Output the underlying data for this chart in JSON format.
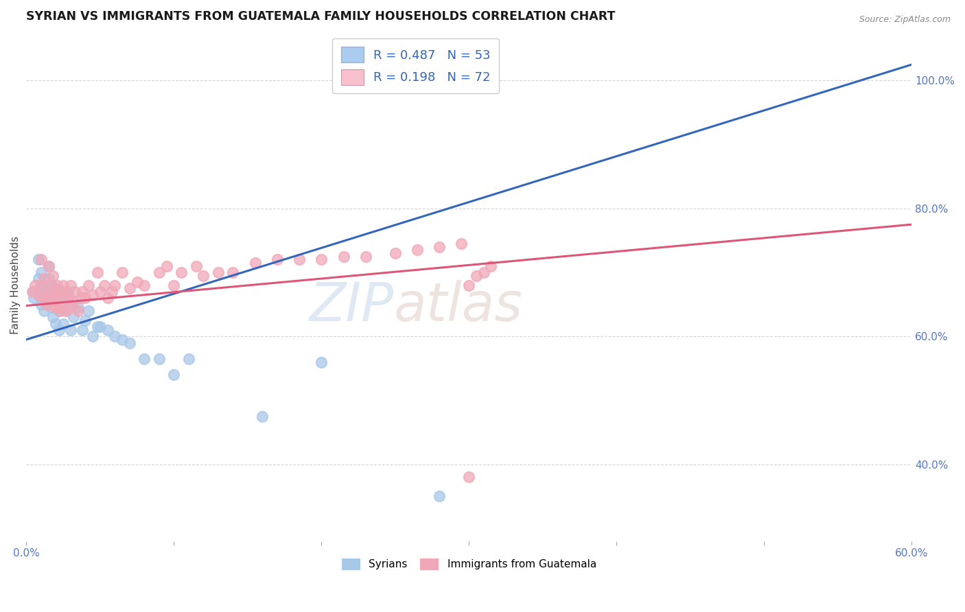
{
  "title": "SYRIAN VS IMMIGRANTS FROM GUATEMALA FAMILY HOUSEHOLDS CORRELATION CHART",
  "source": "Source: ZipAtlas.com",
  "ylabel": "Family Households",
  "watermark_zip": "ZIP",
  "watermark_atlas": "atlas",
  "syrians_color": "#a8c8e8",
  "guatemala_color": "#f0a8b8",
  "trendline_blue": "#3366bb",
  "trendline_pink": "#dd5577",
  "background_color": "#ffffff",
  "grid_color": "#cccccc",
  "xlim": [
    0.0,
    0.6
  ],
  "ylim": [
    0.28,
    1.08
  ],
  "xticks": [
    0.0,
    0.1,
    0.2,
    0.3,
    0.4,
    0.5,
    0.6
  ],
  "xticklabels": [
    "0.0%",
    "",
    "",
    "",
    "",
    "",
    "60.0%"
  ],
  "yticks_right": [
    0.4,
    0.6,
    0.8,
    1.0
  ],
  "ytick_right_labels": [
    "40.0%",
    "60.0%",
    "80.0%",
    "100.0%"
  ],
  "blue_trend_x0": 0.0,
  "blue_trend_y0": 0.595,
  "blue_trend_x1": 0.6,
  "blue_trend_y1": 1.025,
  "pink_trend_x0": 0.0,
  "pink_trend_y0": 0.648,
  "pink_trend_x1": 0.6,
  "pink_trend_y1": 0.775,
  "syrians_x": [
    0.005,
    0.005,
    0.008,
    0.008,
    0.01,
    0.01,
    0.01,
    0.01,
    0.012,
    0.012,
    0.013,
    0.013,
    0.015,
    0.015,
    0.015,
    0.015,
    0.017,
    0.017,
    0.017,
    0.018,
    0.018,
    0.02,
    0.02,
    0.02,
    0.022,
    0.022,
    0.023,
    0.023,
    0.025,
    0.025,
    0.027,
    0.028,
    0.03,
    0.03,
    0.032,
    0.035,
    0.038,
    0.04,
    0.042,
    0.045,
    0.048,
    0.05,
    0.055,
    0.06,
    0.065,
    0.07,
    0.08,
    0.09,
    0.1,
    0.11,
    0.16,
    0.2,
    0.28
  ],
  "syrians_y": [
    0.67,
    0.66,
    0.69,
    0.72,
    0.65,
    0.66,
    0.68,
    0.7,
    0.64,
    0.67,
    0.66,
    0.68,
    0.65,
    0.67,
    0.69,
    0.71,
    0.645,
    0.66,
    0.68,
    0.63,
    0.66,
    0.62,
    0.65,
    0.675,
    0.61,
    0.64,
    0.65,
    0.67,
    0.62,
    0.66,
    0.64,
    0.67,
    0.61,
    0.65,
    0.63,
    0.645,
    0.61,
    0.625,
    0.64,
    0.6,
    0.615,
    0.615,
    0.61,
    0.6,
    0.595,
    0.59,
    0.565,
    0.565,
    0.54,
    0.565,
    0.475,
    0.56,
    0.35
  ],
  "guatemala_x": [
    0.004,
    0.006,
    0.008,
    0.01,
    0.01,
    0.012,
    0.012,
    0.013,
    0.014,
    0.015,
    0.015,
    0.016,
    0.017,
    0.017,
    0.018,
    0.018,
    0.02,
    0.02,
    0.021,
    0.021,
    0.022,
    0.022,
    0.023,
    0.024,
    0.025,
    0.025,
    0.027,
    0.027,
    0.028,
    0.03,
    0.03,
    0.032,
    0.033,
    0.035,
    0.037,
    0.038,
    0.04,
    0.042,
    0.045,
    0.048,
    0.05,
    0.053,
    0.055,
    0.058,
    0.06,
    0.065,
    0.07,
    0.075,
    0.08,
    0.09,
    0.095,
    0.1,
    0.105,
    0.115,
    0.12,
    0.13,
    0.14,
    0.155,
    0.17,
    0.185,
    0.2,
    0.215,
    0.23,
    0.25,
    0.265,
    0.28,
    0.295,
    0.3,
    0.305,
    0.31,
    0.315,
    0.3
  ],
  "guatemala_y": [
    0.67,
    0.68,
    0.665,
    0.68,
    0.72,
    0.66,
    0.69,
    0.66,
    0.65,
    0.67,
    0.71,
    0.66,
    0.65,
    0.68,
    0.66,
    0.695,
    0.645,
    0.665,
    0.645,
    0.68,
    0.65,
    0.67,
    0.64,
    0.67,
    0.65,
    0.68,
    0.64,
    0.665,
    0.66,
    0.645,
    0.68,
    0.655,
    0.67,
    0.64,
    0.66,
    0.67,
    0.66,
    0.68,
    0.665,
    0.7,
    0.67,
    0.68,
    0.66,
    0.67,
    0.68,
    0.7,
    0.675,
    0.685,
    0.68,
    0.7,
    0.71,
    0.68,
    0.7,
    0.71,
    0.695,
    0.7,
    0.7,
    0.715,
    0.72,
    0.72,
    0.72,
    0.725,
    0.725,
    0.73,
    0.735,
    0.74,
    0.745,
    0.68,
    0.695,
    0.7,
    0.71,
    0.38
  ],
  "legend_patch_blue": "#aaccee",
  "legend_patch_pink": "#f8c0cc",
  "legend_label_blue": "R = 0.487   N = 53",
  "legend_label_pink": "R = 0.198   N = 72",
  "bottom_legend_syrians": "Syrians",
  "bottom_legend_guatemala": "Immigrants from Guatemala"
}
